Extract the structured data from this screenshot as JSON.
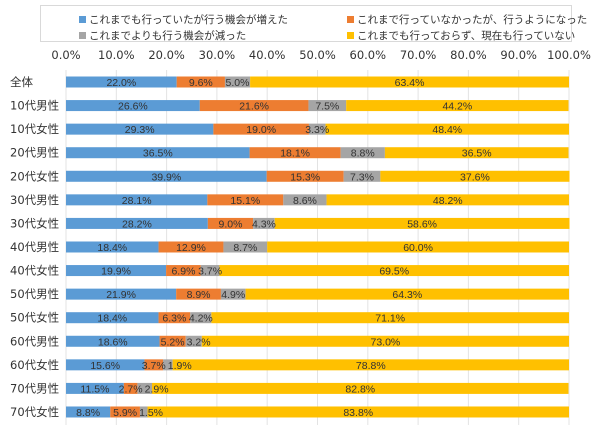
{
  "chart_data": {
    "type": "bar",
    "orientation": "horizontal",
    "stacked": true,
    "categories": [
      "全体",
      "10代男性",
      "10代女性",
      "20代男性",
      "20代女性",
      "30代男性",
      "30代女性",
      "40代男性",
      "40代女性",
      "50代男性",
      "50代女性",
      "60代男性",
      "60代女性",
      "70代男性",
      "70代女性"
    ],
    "series": [
      {
        "name": "これまでも行っていたが行う機会が増えた",
        "color": "#5B9BD5",
        "values": [
          22.0,
          26.6,
          29.3,
          36.5,
          39.9,
          28.1,
          28.2,
          18.4,
          19.9,
          21.9,
          18.4,
          18.6,
          15.6,
          11.5,
          8.8
        ]
      },
      {
        "name": "これまで行っていなかったが、行うようになった",
        "color": "#ED7D31",
        "values": [
          9.6,
          21.6,
          19.0,
          18.1,
          15.3,
          15.1,
          9.0,
          12.9,
          6.9,
          8.9,
          6.3,
          5.2,
          3.7,
          2.7,
          5.9
        ]
      },
      {
        "name": "これまでよりも行う機会が減った",
        "color": "#A5A5A5",
        "values": [
          5.0,
          7.5,
          3.3,
          8.8,
          7.3,
          8.6,
          4.3,
          8.7,
          3.7,
          4.9,
          4.2,
          3.2,
          1.9,
          2.9,
          1.5
        ]
      },
      {
        "name": "これまでも行っておらず、現在も行っていない",
        "color": "#FFC000",
        "values": [
          63.4,
          44.2,
          48.4,
          36.5,
          37.6,
          48.2,
          58.6,
          60.0,
          69.5,
          64.3,
          71.1,
          73.0,
          78.8,
          82.8,
          83.8
        ]
      }
    ],
    "xaxis": {
      "range": [
        0,
        100
      ],
      "ticks": [
        "0.0%",
        "10.0%",
        "20.0%",
        "30.0%",
        "40.0%",
        "50.0%",
        "60.0%",
        "70.0%",
        "80.0%",
        "90.0%",
        "100.0%"
      ],
      "position": "top"
    },
    "grid": true,
    "legend_position": "top",
    "data_labels": true
  }
}
